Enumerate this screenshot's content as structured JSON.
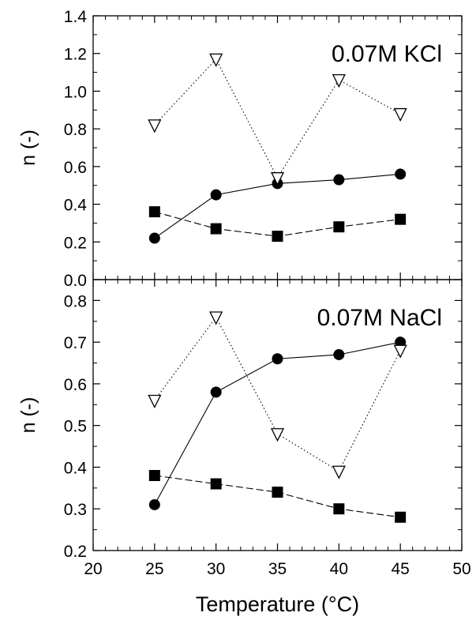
{
  "chart_data": [
    {
      "type": "line",
      "annotation": "0.07M KCl",
      "ylabel": "n (-)",
      "xlim": [
        20,
        50
      ],
      "ylim": [
        0,
        1.4
      ],
      "xticks": [
        20,
        25,
        30,
        35,
        40,
        45,
        50
      ],
      "yticks": [
        0.0,
        0.2,
        0.4,
        0.6,
        0.8,
        1.0,
        1.2,
        1.4
      ],
      "ytick_labels": [
        "0.0",
        "0.2",
        "0.4",
        "0.6",
        "0.8",
        "1.0",
        "1.2",
        "1.4"
      ],
      "x": [
        25,
        30,
        35,
        40,
        45
      ],
      "series": [
        {
          "marker": "circle",
          "line": "solid",
          "values": [
            0.22,
            0.45,
            0.51,
            0.53,
            0.56
          ]
        },
        {
          "marker": "square",
          "line": "dashed",
          "values": [
            0.36,
            0.27,
            0.23,
            0.28,
            0.32
          ]
        },
        {
          "marker": "triangle-down-open",
          "line": "dotted",
          "values": [
            0.82,
            1.17,
            0.54,
            1.06,
            0.88
          ]
        }
      ]
    },
    {
      "type": "line",
      "annotation": "0.07M NaCl",
      "ylabel": "n (-)",
      "xlabel": "Temperature (°C)",
      "xlim": [
        20,
        50
      ],
      "ylim": [
        0.2,
        0.85
      ],
      "xticks": [
        20,
        25,
        30,
        35,
        40,
        45,
        50
      ],
      "xtick_labels": [
        "20",
        "25",
        "30",
        "35",
        "40",
        "45",
        "50"
      ],
      "yticks": [
        0.2,
        0.3,
        0.4,
        0.5,
        0.6,
        0.7,
        0.8
      ],
      "ytick_labels": [
        "0.2",
        "0.3",
        "0.4",
        "0.5",
        "0.6",
        "0.7",
        "0.8"
      ],
      "x": [
        25,
        30,
        35,
        40,
        45
      ],
      "series": [
        {
          "marker": "circle",
          "line": "solid",
          "values": [
            0.31,
            0.58,
            0.66,
            0.67,
            0.7
          ]
        },
        {
          "marker": "square",
          "line": "dashed",
          "values": [
            0.38,
            0.36,
            0.34,
            0.3,
            0.28
          ]
        },
        {
          "marker": "triangle-down-open",
          "line": "dotted",
          "values": [
            0.56,
            0.76,
            0.48,
            0.39,
            0.68
          ]
        }
      ]
    }
  ]
}
